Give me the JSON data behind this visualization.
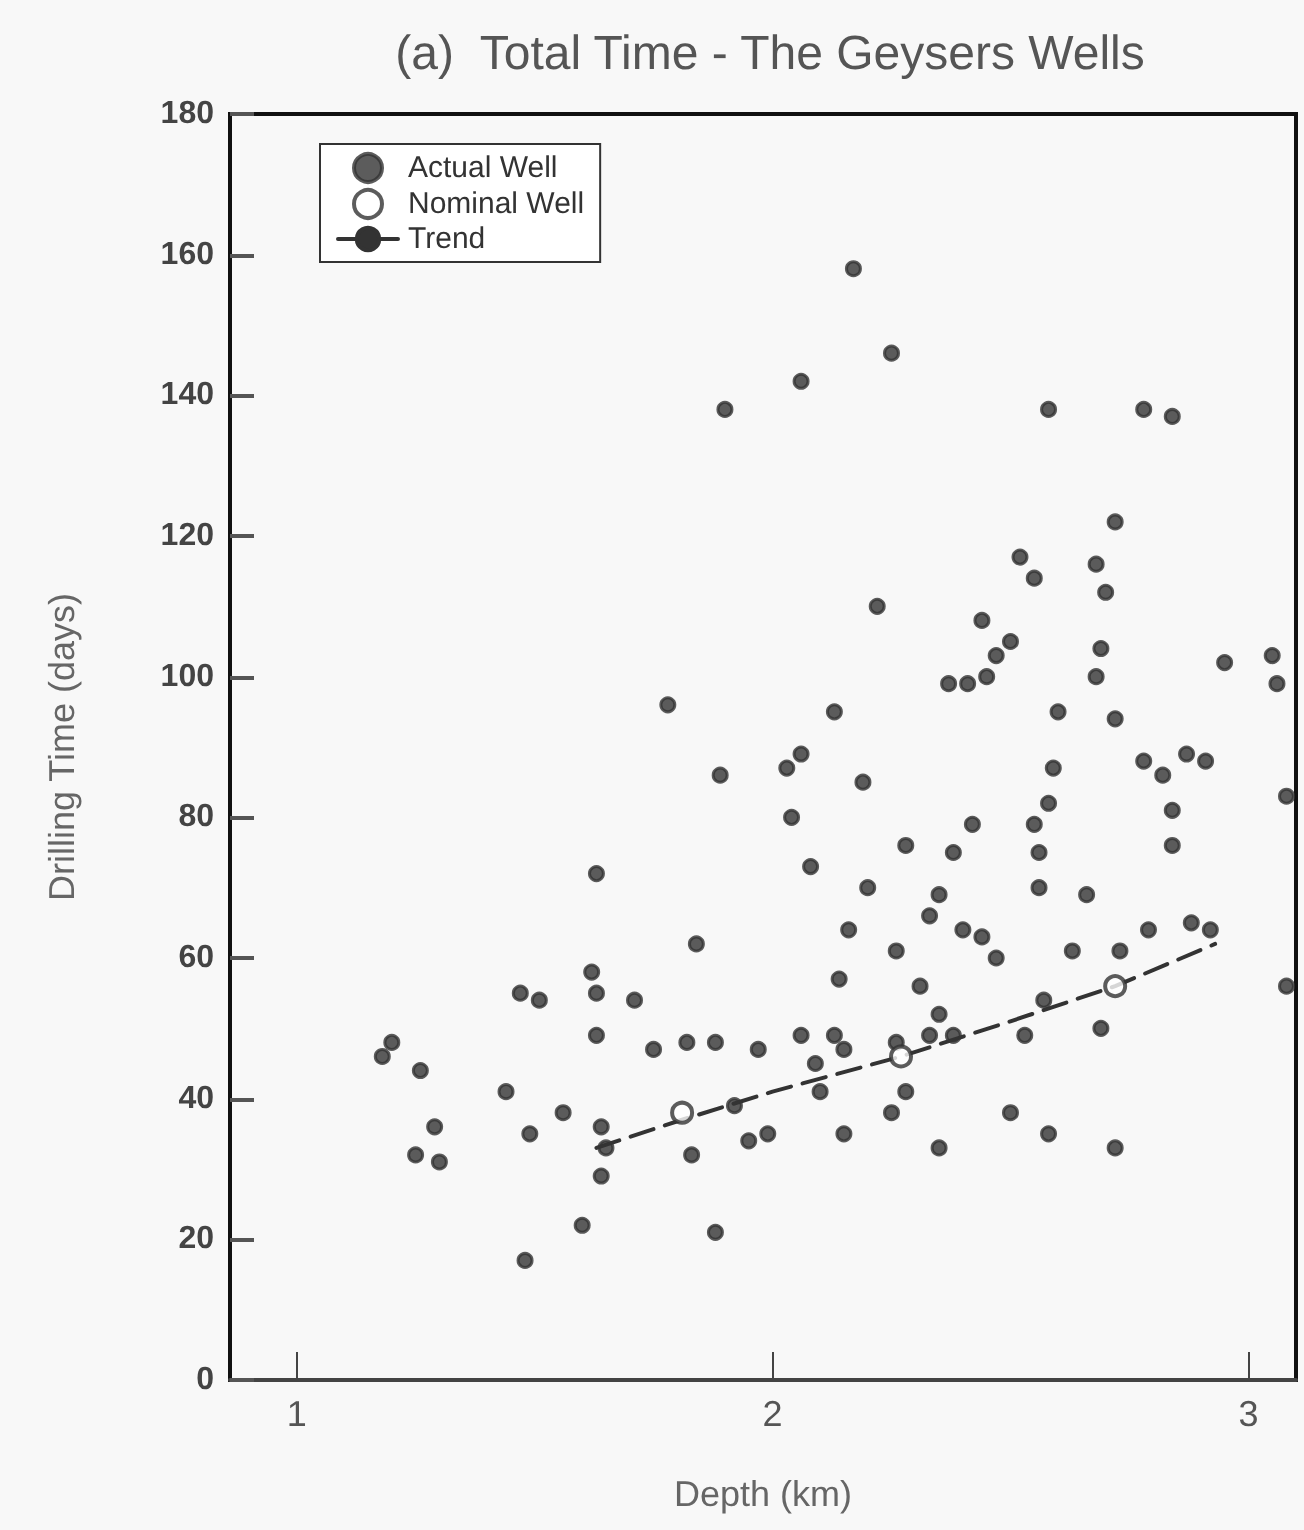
{
  "chart_data": {
    "type": "scatter",
    "title": "(a)  Total Time - The Geysers Wells",
    "xlabel": "Depth (km)",
    "ylabel": "Drilling Time (days)",
    "xlim": [
      0.86,
      3.1
    ],
    "xticks": [
      1,
      2,
      3
    ],
    "ylim": [
      0,
      180
    ],
    "yticks": [
      0,
      20,
      40,
      60,
      80,
      100,
      120,
      140,
      160,
      180
    ],
    "grid": false,
    "legend": "top left",
    "series": [
      {
        "name": "Actual Well",
        "marker": "circle",
        "color": "#333333",
        "x": [
          1.9,
          1.78,
          2.17,
          2.25,
          2.06,
          2.13,
          2.58,
          2.78,
          2.84,
          2.72,
          2.52,
          2.68,
          2.55,
          2.7,
          2.22,
          2.44,
          2.5,
          2.47,
          2.69,
          2.37,
          2.41,
          2.45,
          2.68,
          2.95,
          3.05,
          3.06,
          2.6,
          2.72,
          1.89,
          1.63,
          1.84,
          1.62,
          1.63,
          1.47,
          1.51,
          1.71,
          1.63,
          1.75,
          1.82,
          1.88,
          1.97,
          1.2,
          1.18,
          1.26,
          1.44,
          1.56,
          1.49,
          1.64,
          1.65,
          1.29,
          1.25,
          1.3,
          1.64,
          1.83,
          1.95,
          1.92,
          1.6,
          1.88,
          1.48,
          2.03,
          2.06,
          2.19,
          2.04,
          2.42,
          2.59,
          2.58,
          2.55,
          2.78,
          2.82,
          2.87,
          2.91,
          3.08,
          2.84,
          2.84,
          2.28,
          2.38,
          2.56,
          2.08,
          2.2,
          2.35,
          2.56,
          2.66,
          2.33,
          2.4,
          2.44,
          2.47,
          2.16,
          2.26,
          2.63,
          2.73,
          2.79,
          2.88,
          2.92,
          3.08,
          2.14,
          2.31,
          2.57,
          2.35,
          2.06,
          2.13,
          2.15,
          2.26,
          2.33,
          2.38,
          2.69,
          2.53,
          2.09,
          2.28,
          2.25,
          2.5,
          2.1,
          1.99,
          2.15,
          2.35,
          2.58,
          2.72
        ],
        "values": [
          138,
          96,
          158,
          146,
          142,
          95,
          138,
          138,
          137,
          122,
          117,
          116,
          114,
          112,
          110,
          108,
          105,
          103,
          104,
          99,
          99,
          100,
          100,
          102,
          103,
          99,
          95,
          94,
          86,
          72,
          62,
          58,
          55,
          55,
          54,
          54,
          49,
          47,
          48,
          48,
          47,
          48,
          46,
          44,
          41,
          38,
          35,
          36,
          33,
          36,
          32,
          31,
          29,
          32,
          34,
          39,
          22,
          21,
          17,
          87,
          89,
          85,
          80,
          79,
          87,
          82,
          79,
          88,
          86,
          89,
          88,
          83,
          81,
          76,
          76,
          75,
          75,
          73,
          70,
          69,
          70,
          69,
          66,
          64,
          63,
          60,
          64,
          61,
          61,
          61,
          64,
          65,
          64,
          56,
          57,
          56,
          54,
          52,
          49,
          49,
          47,
          48,
          49,
          49,
          50,
          49,
          45,
          41,
          38,
          38,
          41,
          35,
          35,
          33,
          35,
          33
        ]
      },
      {
        "name": "Nominal Well",
        "color": "#333333",
        "x": [
          1.81,
          2.27,
          2.72
        ],
        "values": [
          38,
          46,
          56
        ]
      },
      {
        "name": "Trend",
        "type": "line",
        "marker": "none",
        "line_style": "dashed",
        "color": "#333333",
        "x": [
          1.63,
          1.81,
          2.0,
          2.27,
          2.5,
          2.72,
          2.93
        ],
        "values": [
          33,
          37,
          41,
          46,
          51,
          56,
          62
        ]
      }
    ]
  }
}
